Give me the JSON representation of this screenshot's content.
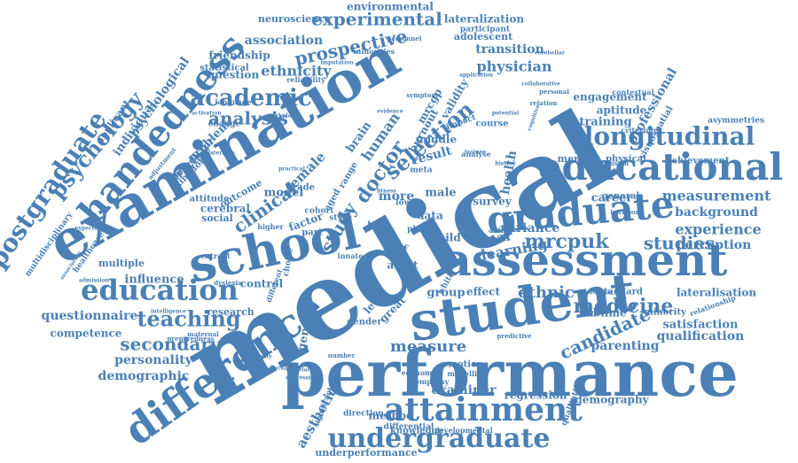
{
  "color": "#4a80b5",
  "words": [
    {
      "text": "medical"
    },
    {
      "text": "performance"
    },
    {
      "text": "examination"
    },
    {
      "text": "school"
    },
    {
      "text": "student"
    },
    {
      "text": "assessment"
    },
    {
      "text": "educational"
    },
    {
      "text": "handedness"
    },
    {
      "text": "difference"
    },
    {
      "text": "graduate"
    },
    {
      "text": "attainment"
    },
    {
      "text": "longitudinal"
    },
    {
      "text": "education"
    },
    {
      "text": "undergraduate"
    },
    {
      "text": "postgraduate"
    },
    {
      "text": "psychology"
    },
    {
      "text": "academic"
    },
    {
      "text": "teaching"
    },
    {
      "text": "clinical"
    },
    {
      "text": "study"
    },
    {
      "text": "selection"
    },
    {
      "text": "analysis"
    },
    {
      "text": "experimental"
    },
    {
      "text": "prospective"
    },
    {
      "text": "mrcpuk"
    },
    {
      "text": "studies"
    },
    {
      "text": "medicine"
    },
    {
      "text": "candidate"
    },
    {
      "text": "measurement"
    },
    {
      "text": "secondary"
    },
    {
      "text": "personality"
    },
    {
      "text": "demographic"
    },
    {
      "text": "measure"
    },
    {
      "text": "ethnic"
    },
    {
      "text": "experience"
    },
    {
      "text": "background"
    },
    {
      "text": "perception"
    },
    {
      "text": "association"
    },
    {
      "text": "ethnicity"
    },
    {
      "text": "physician"
    },
    {
      "text": "transition"
    },
    {
      "text": "questionnaire"
    },
    {
      "text": "environmental"
    },
    {
      "text": "lateralization"
    },
    {
      "text": "neuroscience"
    },
    {
      "text": "friendship"
    },
    {
      "text": "question"
    },
    {
      "text": "statistical"
    },
    {
      "text": "psychological"
    },
    {
      "text": "applicant"
    },
    {
      "text": "individual"
    },
    {
      "text": "practice"
    },
    {
      "text": "problem"
    },
    {
      "text": "doctor"
    },
    {
      "text": "human"
    },
    {
      "text": "brain"
    },
    {
      "text": "female"
    },
    {
      "text": "male"
    },
    {
      "text": "model"
    },
    {
      "text": "factor"
    },
    {
      "text": "cerebral"
    },
    {
      "text": "social"
    },
    {
      "text": "influence"
    },
    {
      "text": "competence"
    },
    {
      "text": "research"
    },
    {
      "text": "control"
    },
    {
      "text": "genetic"
    },
    {
      "text": "aesthetic"
    },
    {
      "text": "method"
    },
    {
      "text": "examiner"
    },
    {
      "text": "regression"
    },
    {
      "text": "demography"
    },
    {
      "text": "parenting"
    },
    {
      "text": "qualification"
    },
    {
      "text": "satisfaction"
    },
    {
      "text": "sublime"
    },
    {
      "text": "minority"
    },
    {
      "text": "lateralisation"
    },
    {
      "text": "standard"
    },
    {
      "text": "group"
    },
    {
      "text": "effect"
    },
    {
      "text": "learning"
    },
    {
      "text": "variance"
    },
    {
      "text": "year"
    },
    {
      "text": "career"
    },
    {
      "text": "general"
    },
    {
      "text": "physical"
    },
    {
      "text": "training"
    },
    {
      "text": "aptitude"
    },
    {
      "text": "engagement"
    },
    {
      "text": "professional"
    },
    {
      "text": "visuospatial"
    },
    {
      "text": "achievement"
    },
    {
      "text": "mrcgp"
    },
    {
      "text": "validity"
    },
    {
      "text": "burnout"
    },
    {
      "text": "adolescent"
    },
    {
      "text": "participant"
    },
    {
      "text": "personnel"
    },
    {
      "text": "minorities"
    },
    {
      "text": "imputation"
    },
    {
      "text": "reliability"
    },
    {
      "text": "language"
    },
    {
      "text": "kingdom"
    },
    {
      "text": "multidisciplinary"
    },
    {
      "text": "multiple"
    },
    {
      "text": "healthcare"
    },
    {
      "text": "expectation"
    },
    {
      "text": "predictor"
    },
    {
      "text": "attitude"
    },
    {
      "text": "outcome"
    },
    {
      "text": "grade"
    },
    {
      "text": "more"
    },
    {
      "text": "self"
    },
    {
      "text": "adult"
    },
    {
      "text": "level"
    },
    {
      "text": "great"
    },
    {
      "text": "gender"
    },
    {
      "text": "data"
    },
    {
      "text": "test"
    },
    {
      "text": "child"
    },
    {
      "text": "survey"
    },
    {
      "text": "result"
    },
    {
      "text": "middle"
    },
    {
      "text": "health"
    },
    {
      "text": "mental"
    },
    {
      "text": "course"
    },
    {
      "text": "knowledge"
    },
    {
      "text": "direction"
    },
    {
      "text": "differential"
    },
    {
      "text": "developmental"
    },
    {
      "text": "underperformance"
    },
    {
      "text": "emotion"
    },
    {
      "text": "economic"
    },
    {
      "text": "modelling"
    },
    {
      "text": "empathy"
    },
    {
      "text": "number"
    },
    {
      "text": "significant"
    },
    {
      "text": "asymmetries"
    },
    {
      "text": "relationship"
    },
    {
      "text": "contextual"
    },
    {
      "text": "criterion"
    },
    {
      "text": "conclusion"
    },
    {
      "text": "relation"
    },
    {
      "text": "maternal"
    },
    {
      "text": "preparedness"
    },
    {
      "text": "intelligence"
    },
    {
      "text": "university"
    },
    {
      "text": "choice"
    },
    {
      "text": "different"
    },
    {
      "text": "dyslexia"
    },
    {
      "text": "entrant"
    },
    {
      "text": "success"
    },
    {
      "text": "predictive"
    },
    {
      "text": "personal"
    },
    {
      "text": "qualitative"
    },
    {
      "text": "ability"
    },
    {
      "text": "style"
    },
    {
      "text": "lower"
    },
    {
      "text": "plab"
    },
    {
      "text": "white"
    },
    {
      "text": "cohort"
    },
    {
      "text": "higher"
    },
    {
      "text": "part"
    },
    {
      "text": "aged"
    },
    {
      "text": "range"
    },
    {
      "text": "practical"
    },
    {
      "text": "admission"
    },
    {
      "text": "backbone"
    },
    {
      "text": "depressive"
    },
    {
      "text": "correlated"
    },
    {
      "text": "symptom"
    },
    {
      "text": "evidence"
    },
    {
      "text": "application"
    },
    {
      "text": "potential"
    },
    {
      "text": "history"
    },
    {
      "text": "fitness"
    },
    {
      "text": "meta"
    },
    {
      "text": "analyse"
    },
    {
      "text": "trainee"
    },
    {
      "text": "cognitive"
    },
    {
      "text": "karlsson"
    },
    {
      "text": "innate"
    },
    {
      "text": "impact"
    },
    {
      "text": "change"
    },
    {
      "text": "laterality"
    },
    {
      "text": "activation"
    },
    {
      "text": "workplace"
    },
    {
      "text": "adjustment"
    },
    {
      "text": "cerebellar"
    },
    {
      "text": "collaborative"
    },
    {
      "text": "association"
    }
  ]
}
